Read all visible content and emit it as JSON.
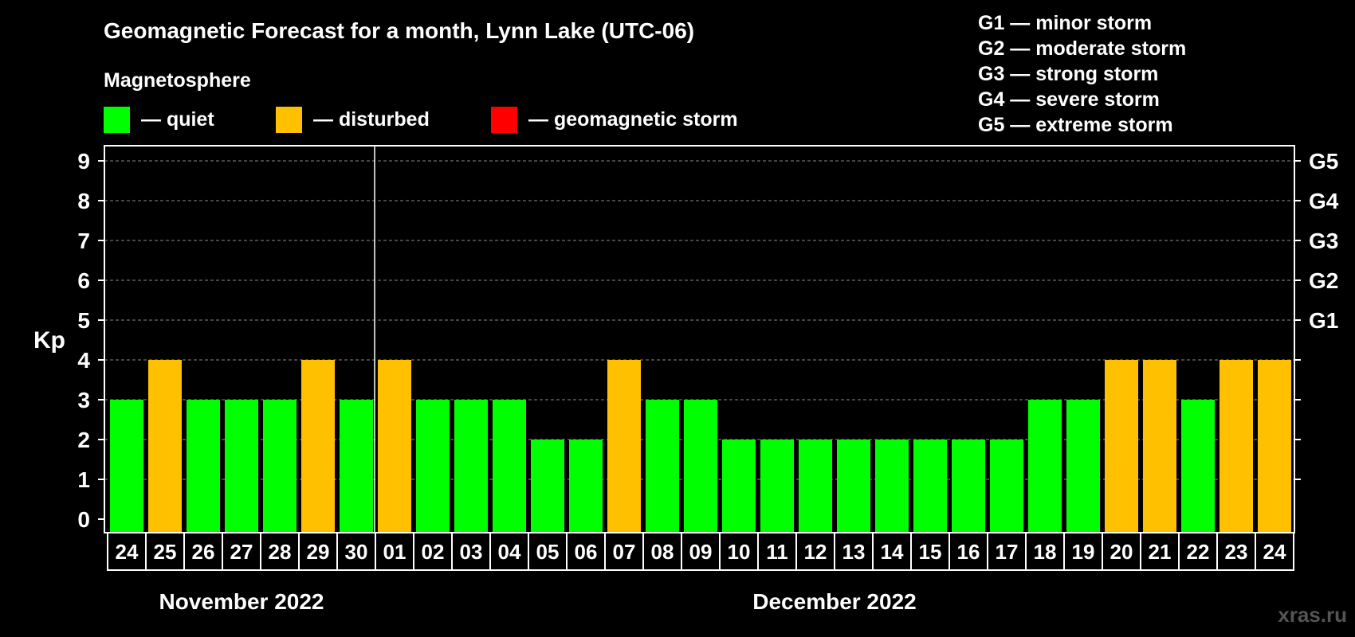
{
  "chart_data": {
    "type": "bar",
    "title": "Geomagnetic Forecast for a month, Lynn Lake (UTC-06)",
    "ylabel": "Kp",
    "ylim": [
      0,
      9
    ],
    "yticks": [
      "0",
      "1",
      "2",
      "3",
      "4",
      "5",
      "6",
      "7",
      "8",
      "9"
    ],
    "right_axis_labels": [
      {
        "kp": 5,
        "label": "G1"
      },
      {
        "kp": 6,
        "label": "G2"
      },
      {
        "kp": 7,
        "label": "G3"
      },
      {
        "kp": 8,
        "label": "G4"
      },
      {
        "kp": 9,
        "label": "G5"
      }
    ],
    "grid": true,
    "legend": {
      "heading": "Magnetosphere",
      "items": [
        {
          "label": "— quiet",
          "color": "#00ff00"
        },
        {
          "label": "— disturbed",
          "color": "#ffc000"
        },
        {
          "label": "— geomagnetic storm",
          "color": "#ff0000"
        }
      ]
    },
    "storm_scale": [
      "G1 — minor storm",
      "G2 — moderate storm",
      "G3 — strong storm",
      "G4 — severe storm",
      "G5 — extreme storm"
    ],
    "months": [
      {
        "label": "November 2022",
        "days": 7
      },
      {
        "label": "December 2022",
        "days": 24
      }
    ],
    "categories": [
      "24",
      "25",
      "26",
      "27",
      "28",
      "29",
      "30",
      "01",
      "02",
      "03",
      "04",
      "05",
      "06",
      "07",
      "08",
      "09",
      "10",
      "11",
      "12",
      "13",
      "14",
      "15",
      "16",
      "17",
      "18",
      "19",
      "20",
      "21",
      "22",
      "23",
      "24"
    ],
    "values": [
      3,
      4,
      3,
      3,
      3,
      4,
      3,
      4,
      3,
      3,
      3,
      2,
      2,
      4,
      3,
      3,
      2,
      2,
      2,
      2,
      2,
      2,
      2,
      2,
      3,
      3,
      4,
      4,
      3,
      4,
      4
    ],
    "colors": {
      "quiet": "#00ff00",
      "disturbed": "#ffc000",
      "storm": "#ff0000"
    }
  },
  "watermark": "xras.ru"
}
